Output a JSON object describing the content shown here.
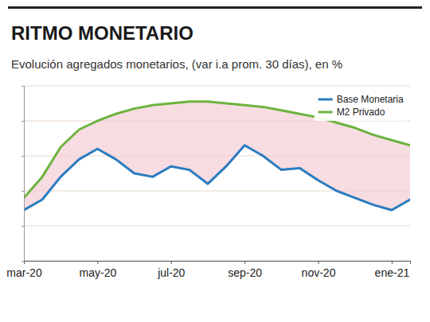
{
  "chart_data": {
    "type": "line",
    "title": "RITMO MONETARIO",
    "subtitle": "Evolución agregados monetarios, (var i.a prom. 30 días), en %",
    "categories": [
      "mar-20",
      null,
      null,
      null,
      "may-20",
      null,
      null,
      null,
      "jul-20",
      null,
      null,
      null,
      "sep-20",
      null,
      null,
      null,
      "nov-20",
      null,
      null,
      null,
      "ene-21",
      null
    ],
    "series": [
      {
        "name": "Base Monetaria",
        "color": "#2a7cc0",
        "values": [
          49,
          55,
          68,
          78,
          84,
          78,
          70,
          68,
          74,
          72,
          64,
          74,
          86,
          80,
          72,
          73,
          66,
          60,
          56,
          52,
          49,
          55
        ]
      },
      {
        "name": "M2 Privado",
        "color": "#6cb33e",
        "values": [
          56,
          68,
          85,
          95,
          100,
          104,
          107,
          109,
          110,
          111,
          111,
          110,
          109,
          108,
          106,
          104,
          102,
          99,
          96,
          92,
          89,
          86
        ]
      }
    ],
    "ylim": [
      20,
      120
    ],
    "yticks": [
      20,
      40,
      60,
      80,
      100,
      120
    ],
    "grid": true,
    "legend": "top-right",
    "tick_labels": "x"
  }
}
